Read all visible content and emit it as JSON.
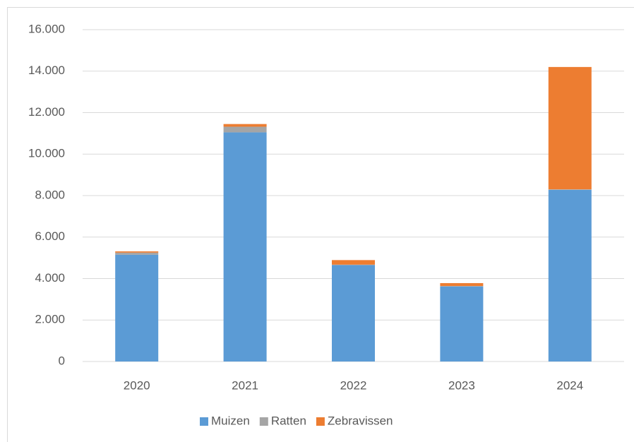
{
  "chart_data": {
    "type": "stacked_bar",
    "categories": [
      "2020",
      "2021",
      "2022",
      "2023",
      "2024"
    ],
    "series": [
      {
        "name": "Muizen",
        "color": "#5b9bd5",
        "values": [
          5150,
          11050,
          4650,
          3620,
          8280
        ]
      },
      {
        "name": "Ratten",
        "color": "#a5a5a5",
        "values": [
          100,
          270,
          20,
          20,
          20
        ]
      },
      {
        "name": "Zebravissen",
        "color": "#ed7d31",
        "values": [
          60,
          130,
          220,
          140,
          5900
        ]
      }
    ],
    "ylim": [
      0,
      16000
    ],
    "yticks": [
      0,
      {
        "value": 2000,
        "label": "2.000"
      },
      {
        "value": 4000,
        "label": "4.000"
      },
      {
        "value": 6000,
        "label": "6.000"
      },
      {
        "value": 8000,
        "label": "8.000"
      },
      {
        "value": 10000,
        "label": "10.000"
      },
      {
        "value": 12000,
        "label": "12.000"
      },
      {
        "value": 14000,
        "label": "14.000"
      },
      {
        "value": 16000,
        "label": "16.000"
      }
    ],
    "grid": true,
    "legend": "bottom"
  }
}
